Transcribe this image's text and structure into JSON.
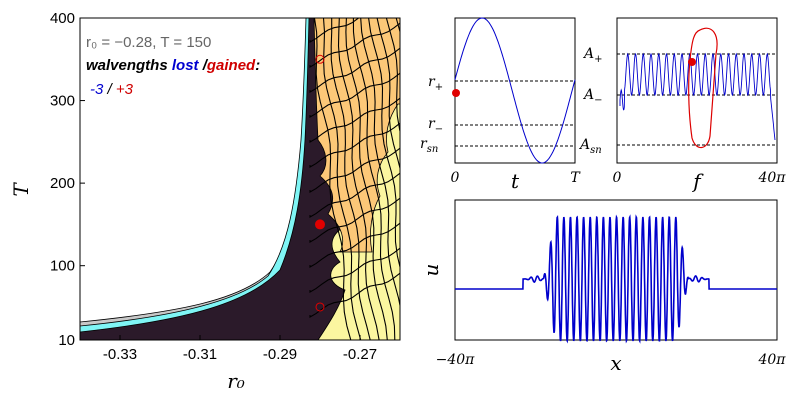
{
  "panel_a": {
    "ann_line1": "r₀ = −0.28, T = 150",
    "ann_line2_prefix": "walvengths ",
    "ann_lost": "lost",
    "ann_sep": " /",
    "ann_gained": "gained",
    "ann_colon": ":",
    "ann_minus": "-3",
    "ann_slash": " / ",
    "ann_plus": "+3",
    "colors": {
      "dark": "#2b1a2a",
      "cyan": "#7ff5f5",
      "yellow": "#fbf6a0",
      "orange": "#fcc878",
      "gray": "#c8c8c8",
      "marker": "#e00000"
    }
  },
  "chart_data": [
    {
      "type": "heatmap",
      "panel": "existence-region",
      "xlabel": "r₀",
      "ylabel": "T",
      "xlim": [
        -0.34,
        -0.26
      ],
      "ylim": [
        10,
        400
      ],
      "xticks": [
        -0.33,
        -0.31,
        -0.29,
        -0.27
      ],
      "xtick_labels": [
        "-0.33",
        "-0.31",
        "-0.29",
        "-0.27"
      ],
      "yticks": [
        10,
        100,
        200,
        300,
        400
      ],
      "ytick_labels": [
        "10",
        "100",
        "200",
        "300",
        "400"
      ],
      "markers": [
        {
          "r0": -0.28,
          "T": 150,
          "style": "filled"
        },
        {
          "r0": -0.28,
          "T": 50,
          "style": "open"
        },
        {
          "r0": -0.28,
          "T": 350,
          "style": "open"
        }
      ]
    },
    {
      "type": "line",
      "panel": "ramp-profile",
      "xlabel": "t",
      "xtick_labels": [
        "0",
        "T"
      ],
      "ytick_labels": [
        "r₊",
        "r₋",
        "r_sn"
      ],
      "ylim": [
        -0.36,
        -0.2
      ],
      "levels": {
        "r_plus": -0.26,
        "r_minus": -0.3,
        "r_sn": -0.32
      },
      "amplitude": 0.08,
      "offset": -0.28
    },
    {
      "type": "line",
      "panel": "amplitude-trace",
      "xlabel": "f",
      "xtick_labels": [
        "0",
        "40π"
      ],
      "ytick_labels": [
        "A₊",
        "A₋",
        "A_sn"
      ],
      "levels": {
        "A_plus": 1.0,
        "A_minus": 0.6,
        "A_sn": 0.1
      },
      "oscillations": 20
    },
    {
      "type": "line",
      "panel": "pattern-profile",
      "xlabel": "x",
      "ylabel": "u",
      "xtick_labels": [
        "−40π",
        "40π"
      ],
      "xlim": [
        -40,
        40
      ],
      "oscillations": 22,
      "active_region": [
        -15,
        15
      ]
    }
  ]
}
